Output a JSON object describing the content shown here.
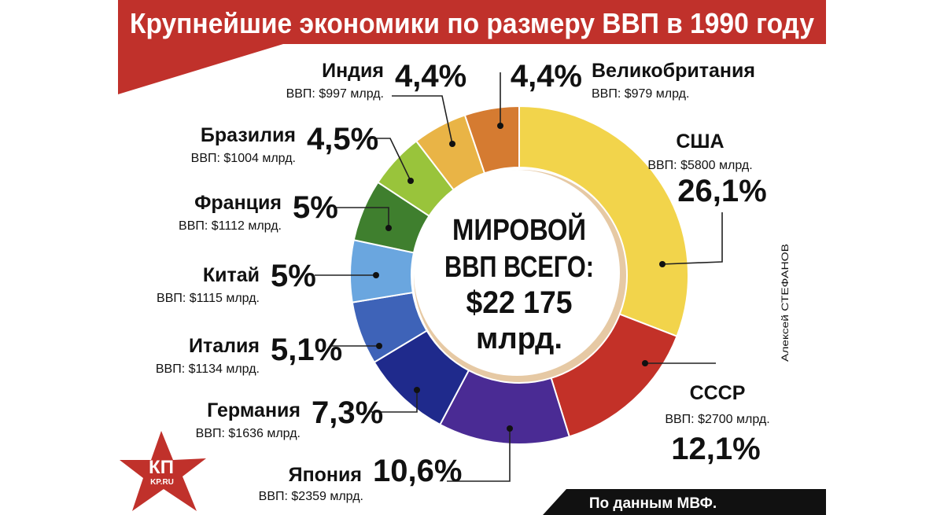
{
  "colors": {
    "title_band": "#c0312b",
    "bottom_band": "#111111",
    "text": "#111111"
  },
  "title": "Крупнейшие экономики по размеру ВВП в 1990 году",
  "center_text": {
    "line1": "МИРОВОЙ",
    "line2": "ВВП ВСЕГО:",
    "line3": "$22 175",
    "line4": "млрд."
  },
  "source": "По данным МВФ.",
  "author": "Алексей СТЕФАНОВ",
  "logo": {
    "text": "КП",
    "sub": "KP.RU",
    "icon": "kp-star-logo"
  },
  "chart_data": {
    "type": "pie",
    "title": "Крупнейшие экономики по размеру ВВП в 1990 году",
    "total_label": "$22 175 млрд.",
    "slices": [
      {
        "name": "США",
        "percent": 26.1,
        "label": "26,1%",
        "gdp": "ВВП: $5800 млрд.",
        "color": "#f2d44b"
      },
      {
        "name": "СССР",
        "percent": 12.1,
        "label": "12,1%",
        "gdp": "ВВП: $2700 млрд.",
        "color": "#c33128"
      },
      {
        "name": "Япония",
        "percent": 10.6,
        "label": "10,6%",
        "gdp": "ВВП: $2359 млрд.",
        "color": "#4a2b94"
      },
      {
        "name": "Германия",
        "percent": 7.3,
        "label": "7,3%",
        "gdp": "ВВП: $1636 млрд.",
        "color": "#1f2a8c"
      },
      {
        "name": "Италия",
        "percent": 5.1,
        "label": "5,1%",
        "gdp": "ВВП: $1134 млрд.",
        "color": "#3e63b8"
      },
      {
        "name": "Китай",
        "percent": 5.0,
        "label": "5%",
        "gdp": "ВВП: $1115 млрд.",
        "color": "#6aa6df"
      },
      {
        "name": "Франция",
        "percent": 5.0,
        "label": "5%",
        "gdp": "ВВП: $1112 млрд.",
        "color": "#3f7f2e"
      },
      {
        "name": "Бразилия",
        "percent": 4.5,
        "label": "4,5%",
        "gdp": "ВВП: $1004 млрд.",
        "color": "#99c43b"
      },
      {
        "name": "Индия",
        "percent": 4.4,
        "label": "4,4%",
        "gdp": "ВВП: $997 млрд.",
        "color": "#e9b446"
      },
      {
        "name": "Великобритания",
        "percent": 4.4,
        "label": "4,4%",
        "gdp": "ВВП: $979 млрд.",
        "color": "#d57b31"
      }
    ]
  }
}
